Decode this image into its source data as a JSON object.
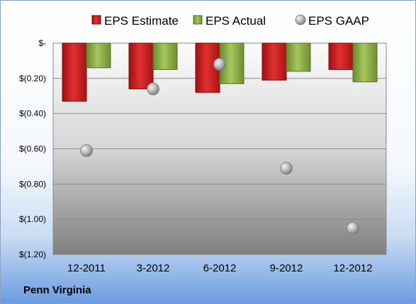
{
  "footer": {
    "company": "Penn Virginia"
  },
  "chart_data": {
    "type": "bar",
    "title": "",
    "xlabel": "",
    "ylabel": "",
    "categories": [
      "12-2011",
      "3-2012",
      "6-2012",
      "9-2012",
      "12-2012"
    ],
    "series": [
      {
        "name": "EPS Estimate",
        "kind": "bar",
        "color": "#d42020",
        "values": [
          -0.33,
          -0.26,
          -0.28,
          -0.21,
          -0.15
        ]
      },
      {
        "name": "EPS Actual",
        "kind": "bar",
        "color": "#8fb04a",
        "values": [
          -0.14,
          -0.15,
          -0.23,
          -0.16,
          -0.22
        ]
      },
      {
        "name": "EPS GAAP",
        "kind": "marker",
        "color": "#a0a0a0",
        "values": [
          -0.61,
          -0.26,
          -0.12,
          -0.71,
          -1.05
        ]
      }
    ],
    "ylim": [
      -1.2,
      0
    ],
    "yticks": [
      0,
      -0.2,
      -0.4,
      -0.6,
      -0.8,
      -1.0,
      -1.2
    ],
    "ytick_labels": [
      "$-",
      "$(0.20)",
      "$(0.40)",
      "$(0.60)",
      "$(0.80)",
      "$(1.00)",
      "$(1.20)"
    ],
    "grid": true,
    "legend_position": "top"
  }
}
